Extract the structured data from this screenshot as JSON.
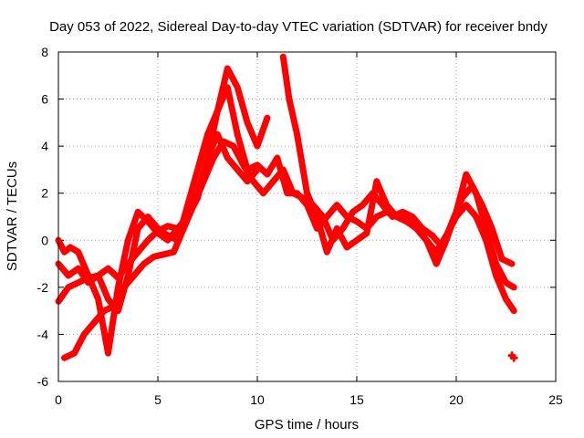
{
  "chart_data": {
    "type": "scatter",
    "title": "Day 053 of 2022, Sidereal Day-to-day VTEC variation (SDTVAR) for receiver bndy",
    "xlabel": "GPS time / hours",
    "ylabel": "SDTVAR / TECUs",
    "xlim": [
      0,
      25
    ],
    "ylim": [
      -6,
      8
    ],
    "xticks": [
      "0",
      "5",
      "10",
      "15",
      "20",
      "25"
    ],
    "yticks": [
      "-6",
      "-4",
      "-2",
      "0",
      "2",
      "4",
      "6",
      "8"
    ],
    "grid": true,
    "marker": "plus",
    "color": "#ff0000",
    "series": [
      {
        "name": "arc-1",
        "x": [
          0.0,
          0.5,
          1.0,
          1.5,
          2.0,
          2.5,
          3.0,
          3.5,
          4.0,
          4.5,
          5.0,
          5.5,
          6.0,
          6.5,
          7.0,
          7.5,
          8.0,
          8.5,
          9.0,
          9.5,
          10.0,
          10.5,
          11.0,
          11.5,
          12.0,
          12.5,
          13.0,
          13.5,
          14.0,
          14.5,
          15.0,
          15.5,
          16.0,
          16.5,
          17.0,
          17.5,
          18.0,
          18.5,
          19.0,
          19.5,
          20.0,
          20.5,
          21.0,
          21.5,
          22.0,
          22.5,
          22.9
        ],
        "y": [
          -1.0,
          -1.5,
          -1.2,
          -1.8,
          -1.5,
          -1.2,
          -1.6,
          -1.0,
          -0.5,
          0.0,
          0.4,
          0.6,
          0.5,
          1.0,
          1.8,
          3.5,
          5.5,
          7.3,
          6.5,
          5.0,
          4.0,
          5.2,
          null,
          null,
          null,
          null,
          null,
          null,
          null,
          null,
          null,
          null,
          null,
          null,
          null,
          null,
          null,
          null,
          null,
          null,
          null,
          null,
          null,
          null,
          null,
          null,
          null
        ]
      },
      {
        "name": "arc-2",
        "x": [
          0.0,
          0.5,
          1.0,
          1.5,
          2.0,
          2.5,
          3.0,
          3.5,
          4.0,
          4.5,
          5.0,
          5.5,
          6.0,
          6.5,
          7.0,
          7.5,
          8.0,
          8.5,
          9.0,
          9.5,
          10.0,
          10.5,
          11.0,
          11.5,
          12.0,
          12.5,
          13.0,
          13.5,
          14.0,
          14.5,
          15.0,
          15.5,
          16.0,
          16.5,
          17.0,
          17.5,
          18.0,
          18.5,
          19.0,
          19.5,
          20.0,
          20.5,
          21.0,
          21.5,
          22.0,
          22.5,
          22.9
        ],
        "y": [
          -2.6,
          -2.0,
          -1.8,
          -1.6,
          -1.5,
          -2.5,
          -3.0,
          -1.5,
          0.5,
          1.0,
          0.5,
          0.2,
          0.0,
          1.5,
          3.0,
          4.5,
          5.5,
          6.5,
          4.5,
          3.0,
          3.2,
          2.8,
          3.5,
          2.0,
          2.0,
          1.5,
          0.5,
          1.0,
          1.5,
          1.0,
          0.8,
          0.5,
          1.0,
          1.2,
          1.0,
          0.8,
          0.5,
          0.0,
          -0.5,
          0.2,
          1.0,
          1.5,
          1.0,
          0.0,
          -1.5,
          -2.5,
          -3.0
        ]
      },
      {
        "name": "arc-3",
        "x": [
          0.3,
          0.8,
          1.3,
          1.8,
          2.3,
          2.8,
          3.3,
          3.8,
          4.3,
          4.8,
          5.3,
          5.8,
          6.3,
          6.8,
          7.3,
          7.8,
          8.3,
          8.8,
          9.3,
          9.8,
          10.3,
          10.8,
          11.3,
          11.8,
          12.3,
          12.8,
          13.3,
          13.8,
          14.3,
          14.8,
          15.3,
          15.8,
          16.3,
          16.8,
          17.3,
          17.8,
          18.3,
          18.8,
          19.3,
          19.8,
          20.3,
          20.8,
          21.3,
          21.8,
          22.3,
          22.8
        ],
        "y": [
          -5.0,
          -4.8,
          -4.0,
          -3.5,
          -3.0,
          -2.8,
          -2.0,
          -1.5,
          -1.0,
          -0.7,
          -0.6,
          -0.5,
          0.5,
          1.5,
          2.5,
          3.5,
          4.2,
          4.0,
          3.2,
          2.5,
          2.0,
          2.5,
          3.0,
          2.0,
          1.8,
          1.5,
          1.0,
          0.0,
          0.5,
          1.2,
          1.5,
          2.0,
          1.5,
          1.0,
          1.2,
          1.0,
          0.5,
          0.2,
          -0.3,
          0.8,
          1.8,
          2.3,
          1.5,
          0.5,
          -0.8,
          -1.0
        ]
      },
      {
        "name": "arc-4",
        "x": [
          0.0,
          0.3,
          0.6,
          1.0,
          1.5,
          2.0,
          2.5,
          3.0,
          3.5,
          4.0,
          4.5,
          5.0,
          5.5,
          6.0,
          6.5,
          7.0,
          7.5,
          8.0,
          8.5,
          9.0,
          9.5,
          10.0,
          10.5,
          11.0,
          11.5,
          12.0,
          12.5,
          13.0,
          13.5,
          14.0,
          14.5,
          15.0,
          15.5,
          16.0,
          16.5,
          17.0,
          17.5,
          18.0,
          18.5,
          19.0,
          19.5,
          20.0,
          20.5,
          21.0,
          21.5,
          22.0,
          22.5
        ],
        "y": [
          0.0,
          -0.5,
          -0.3,
          -0.5,
          -1.5,
          -2.5,
          -4.8,
          -2.0,
          0.0,
          1.2,
          0.8,
          0.3,
          0.0,
          0.5,
          1.0,
          2.0,
          3.5,
          4.5,
          3.5,
          3.0,
          2.5,
          3.0,
          null,
          null,
          null,
          null,
          null,
          null,
          null,
          null,
          null,
          null,
          null,
          null,
          null,
          null,
          null,
          null,
          null,
          null,
          null,
          null,
          null,
          null,
          null,
          null,
          null
        ]
      },
      {
        "name": "arc-5",
        "x": [
          11.3,
          11.6,
          12.0,
          12.5,
          13.0,
          13.5,
          14.0,
          14.5,
          15.0,
          15.5,
          16.0,
          16.5,
          17.0,
          17.5,
          18.0,
          18.5,
          19.0,
          19.5,
          20.0,
          20.5,
          21.0,
          21.5,
          22.0,
          22.5,
          22.9
        ],
        "y": [
          7.8,
          6.0,
          4.5,
          2.0,
          1.0,
          -0.5,
          0.5,
          -0.3,
          0.0,
          0.3,
          2.5,
          1.5,
          1.0,
          1.0,
          0.5,
          0.0,
          -1.0,
          0.0,
          1.2,
          2.8,
          2.0,
          0.5,
          -1.0,
          -1.8,
          -2.0
        ]
      }
    ],
    "outliers": [
      {
        "x": 22.8,
        "y": -4.9
      },
      {
        "x": 22.9,
        "y": -5.0
      }
    ]
  }
}
